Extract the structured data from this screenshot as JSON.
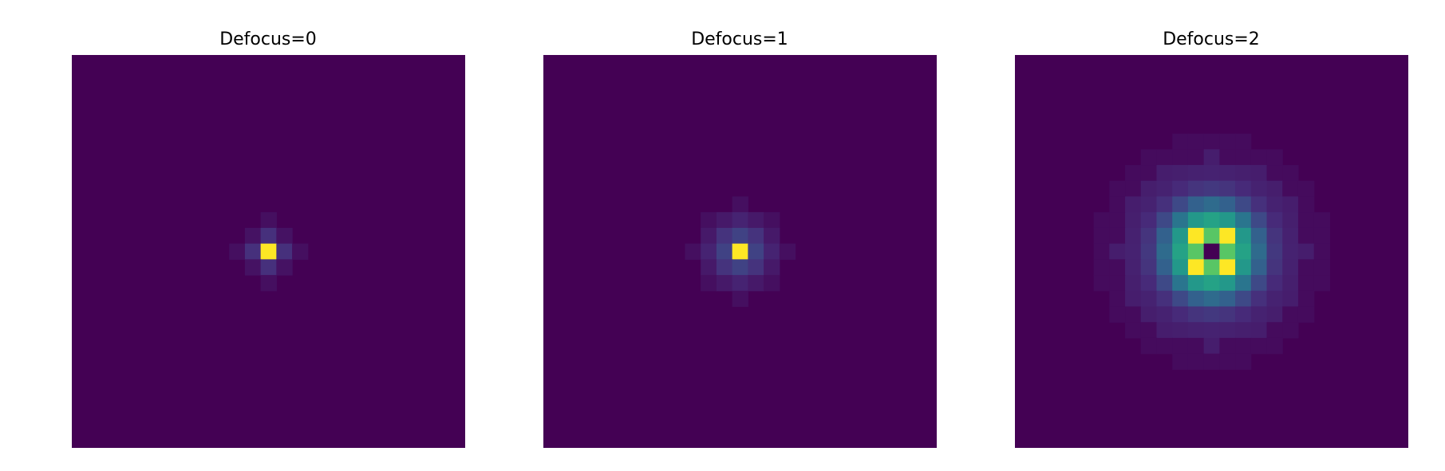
{
  "colors": {
    "background": "#ffffff"
  },
  "chart_data": [
    {
      "type": "heatmap",
      "title": "Defocus=0",
      "grid": false,
      "axes": "off",
      "colormap": "viridis",
      "xlim": [
        0,
        25
      ],
      "ylim": [
        0,
        25
      ],
      "cells": [
        {
          "x": 12,
          "y": 12,
          "v": 1.0
        },
        {
          "x": 11,
          "y": 12,
          "v": 0.14
        },
        {
          "x": 13,
          "y": 12,
          "v": 0.14
        },
        {
          "x": 12,
          "y": 11,
          "v": 0.14
        },
        {
          "x": 12,
          "y": 13,
          "v": 0.14
        },
        {
          "x": 11,
          "y": 11,
          "v": 0.05
        },
        {
          "x": 13,
          "y": 11,
          "v": 0.05
        },
        {
          "x": 11,
          "y": 13,
          "v": 0.05
        },
        {
          "x": 13,
          "y": 13,
          "v": 0.05
        },
        {
          "x": 10,
          "y": 12,
          "v": 0.04
        },
        {
          "x": 14,
          "y": 12,
          "v": 0.04
        },
        {
          "x": 12,
          "y": 10,
          "v": 0.04
        },
        {
          "x": 12,
          "y": 14,
          "v": 0.04
        }
      ]
    },
    {
      "type": "heatmap",
      "title": "Defocus=1",
      "grid": false,
      "axes": "off",
      "colormap": "viridis",
      "xlim": [
        0,
        25
      ],
      "ylim": [
        0,
        25
      ],
      "cells": [
        {
          "x": 12,
          "y": 12,
          "v": 1.0
        },
        {
          "x": 11,
          "y": 12,
          "v": 0.2
        },
        {
          "x": 13,
          "y": 12,
          "v": 0.2
        },
        {
          "x": 12,
          "y": 11,
          "v": 0.2
        },
        {
          "x": 12,
          "y": 13,
          "v": 0.2
        },
        {
          "x": 11,
          "y": 11,
          "v": 0.15
        },
        {
          "x": 13,
          "y": 11,
          "v": 0.15
        },
        {
          "x": 11,
          "y": 13,
          "v": 0.15
        },
        {
          "x": 13,
          "y": 13,
          "v": 0.15
        },
        {
          "x": 10,
          "y": 12,
          "v": 0.1
        },
        {
          "x": 14,
          "y": 12,
          "v": 0.1
        },
        {
          "x": 12,
          "y": 10,
          "v": 0.1
        },
        {
          "x": 12,
          "y": 14,
          "v": 0.1
        },
        {
          "x": 10,
          "y": 11,
          "v": 0.07
        },
        {
          "x": 14,
          "y": 11,
          "v": 0.07
        },
        {
          "x": 10,
          "y": 13,
          "v": 0.07
        },
        {
          "x": 14,
          "y": 13,
          "v": 0.07
        },
        {
          "x": 11,
          "y": 10,
          "v": 0.07
        },
        {
          "x": 13,
          "y": 10,
          "v": 0.07
        },
        {
          "x": 11,
          "y": 14,
          "v": 0.07
        },
        {
          "x": 13,
          "y": 14,
          "v": 0.07
        },
        {
          "x": 9,
          "y": 12,
          "v": 0.04
        },
        {
          "x": 15,
          "y": 12,
          "v": 0.04
        },
        {
          "x": 12,
          "y": 9,
          "v": 0.04
        },
        {
          "x": 12,
          "y": 15,
          "v": 0.04
        },
        {
          "x": 10,
          "y": 10,
          "v": 0.04
        },
        {
          "x": 14,
          "y": 10,
          "v": 0.04
        },
        {
          "x": 10,
          "y": 14,
          "v": 0.04
        },
        {
          "x": 14,
          "y": 14,
          "v": 0.04
        }
      ]
    },
    {
      "type": "heatmap",
      "title": "Defocus=2",
      "grid": false,
      "axes": "off",
      "colormap": "viridis",
      "xlim": [
        0,
        25
      ],
      "ylim": [
        0,
        25
      ],
      "cells": [
        {
          "x": 12,
          "y": 12,
          "v": 0.0
        },
        {
          "x": 11,
          "y": 11,
          "v": 1.0
        },
        {
          "x": 13,
          "y": 11,
          "v": 1.0
        },
        {
          "x": 11,
          "y": 13,
          "v": 1.0
        },
        {
          "x": 13,
          "y": 13,
          "v": 1.0
        },
        {
          "x": 12,
          "y": 11,
          "v": 0.74
        },
        {
          "x": 11,
          "y": 12,
          "v": 0.74
        },
        {
          "x": 13,
          "y": 12,
          "v": 0.74
        },
        {
          "x": 12,
          "y": 13,
          "v": 0.74
        }
      ]
    }
  ]
}
